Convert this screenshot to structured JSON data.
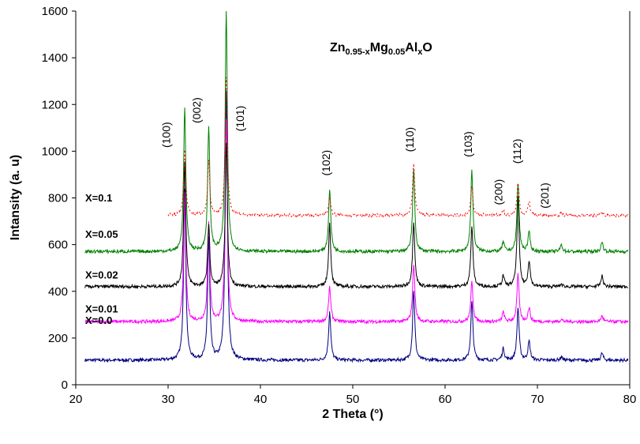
{
  "chart_data": {
    "type": "line",
    "title_parts": [
      {
        "text": "Zn",
        "sub": false
      },
      {
        "text": "0.95-x",
        "sub": true
      },
      {
        "text": "Mg",
        "sub": false
      },
      {
        "text": "0.05",
        "sub": true
      },
      {
        "text": "Al",
        "sub": false
      },
      {
        "text": "x",
        "sub": true
      },
      {
        "text": "O",
        "sub": false
      }
    ],
    "xlabel": "2 Theta (°)",
    "ylabel": "Intansity (a. u)",
    "xlim": [
      20,
      80
    ],
    "ylim": [
      0,
      1600
    ],
    "xticks": [
      "20",
      "30",
      "40",
      "50",
      "60",
      "70",
      "80"
    ],
    "yticks": [
      "0",
      "200",
      "400",
      "600",
      "800",
      "1000",
      "1200",
      "1400",
      "1600"
    ],
    "peak_labels": [
      {
        "text": "(100)",
        "x": 30.2,
        "y": 1070
      },
      {
        "text": "(002)",
        "x": 33.5,
        "y": 1175
      },
      {
        "text": "(101)",
        "x": 38.2,
        "y": 1140
      },
      {
        "text": "(102)",
        "x": 47.5,
        "y": 950
      },
      {
        "text": "(110)",
        "x": 56.6,
        "y": 1050
      },
      {
        "text": "(103)",
        "x": 62.9,
        "y": 1030
      },
      {
        "text": "(200)",
        "x": 66.2,
        "y": 825
      },
      {
        "text": "(112)",
        "x": 68.2,
        "y": 1000
      },
      {
        "text": "(201)",
        "x": 71.2,
        "y": 810
      }
    ],
    "series": [
      {
        "name": "X=0.0",
        "color": "#000080",
        "baseline": 105,
        "x_start": 21,
        "peaks": [
          [
            31.8,
            730
          ],
          [
            34.4,
            520
          ],
          [
            36.3,
            1150
          ],
          [
            47.5,
            210
          ],
          [
            56.6,
            300
          ],
          [
            62.9,
            250
          ],
          [
            66.3,
            50
          ],
          [
            67.9,
            225
          ],
          [
            69.1,
            80
          ],
          [
            72.6,
            15
          ],
          [
            77.0,
            30
          ]
        ],
        "label_y": 260
      },
      {
        "name": "X=0.01",
        "color": "#ff00ff",
        "baseline": 270,
        "x_start": 21,
        "peaks": [
          [
            31.8,
            560
          ],
          [
            34.4,
            420
          ],
          [
            36.3,
            870
          ],
          [
            47.5,
            150
          ],
          [
            56.6,
            250
          ],
          [
            62.9,
            170
          ],
          [
            66.3,
            40
          ],
          [
            67.9,
            200
          ],
          [
            69.1,
            60
          ],
          [
            72.6,
            10
          ],
          [
            77.0,
            25
          ]
        ],
        "label_y": 310
      },
      {
        "name": "X=0.02",
        "color": "#000000",
        "baseline": 420,
        "x_start": 21,
        "peaks": [
          [
            31.8,
            540
          ],
          [
            34.4,
            260
          ],
          [
            36.3,
            610
          ],
          [
            47.5,
            270
          ],
          [
            56.6,
            280
          ],
          [
            62.9,
            260
          ],
          [
            66.3,
            45
          ],
          [
            67.9,
            380
          ],
          [
            69.1,
            110
          ],
          [
            72.6,
            10
          ],
          [
            77.0,
            45
          ]
        ],
        "label_y": 455
      },
      {
        "name": "X=0.05",
        "color": "#008000",
        "baseline": 570,
        "x_start": 21,
        "peaks": [
          [
            31.8,
            620
          ],
          [
            34.4,
            530
          ],
          [
            36.3,
            1030
          ],
          [
            47.5,
            270
          ],
          [
            56.6,
            350
          ],
          [
            62.9,
            350
          ],
          [
            66.3,
            40
          ],
          [
            67.9,
            290
          ],
          [
            69.1,
            80
          ],
          [
            72.6,
            30
          ],
          [
            77.0,
            40
          ]
        ],
        "label_y": 630
      },
      {
        "name": "X=0.1",
        "color": "#ff0000",
        "baseline": 725,
        "x_start": 30,
        "peaks": [
          [
            31.8,
            280
          ],
          [
            34.4,
            230
          ],
          [
            36.3,
            590
          ],
          [
            47.5,
            80
          ],
          [
            56.6,
            220
          ],
          [
            62.9,
            120
          ],
          [
            66.3,
            20
          ],
          [
            67.9,
            140
          ],
          [
            69.1,
            60
          ],
          [
            72.6,
            10
          ],
          [
            77.0,
            10
          ]
        ],
        "label_y": 785
      }
    ],
    "grid": false,
    "legend": "labels at left of each trace"
  }
}
